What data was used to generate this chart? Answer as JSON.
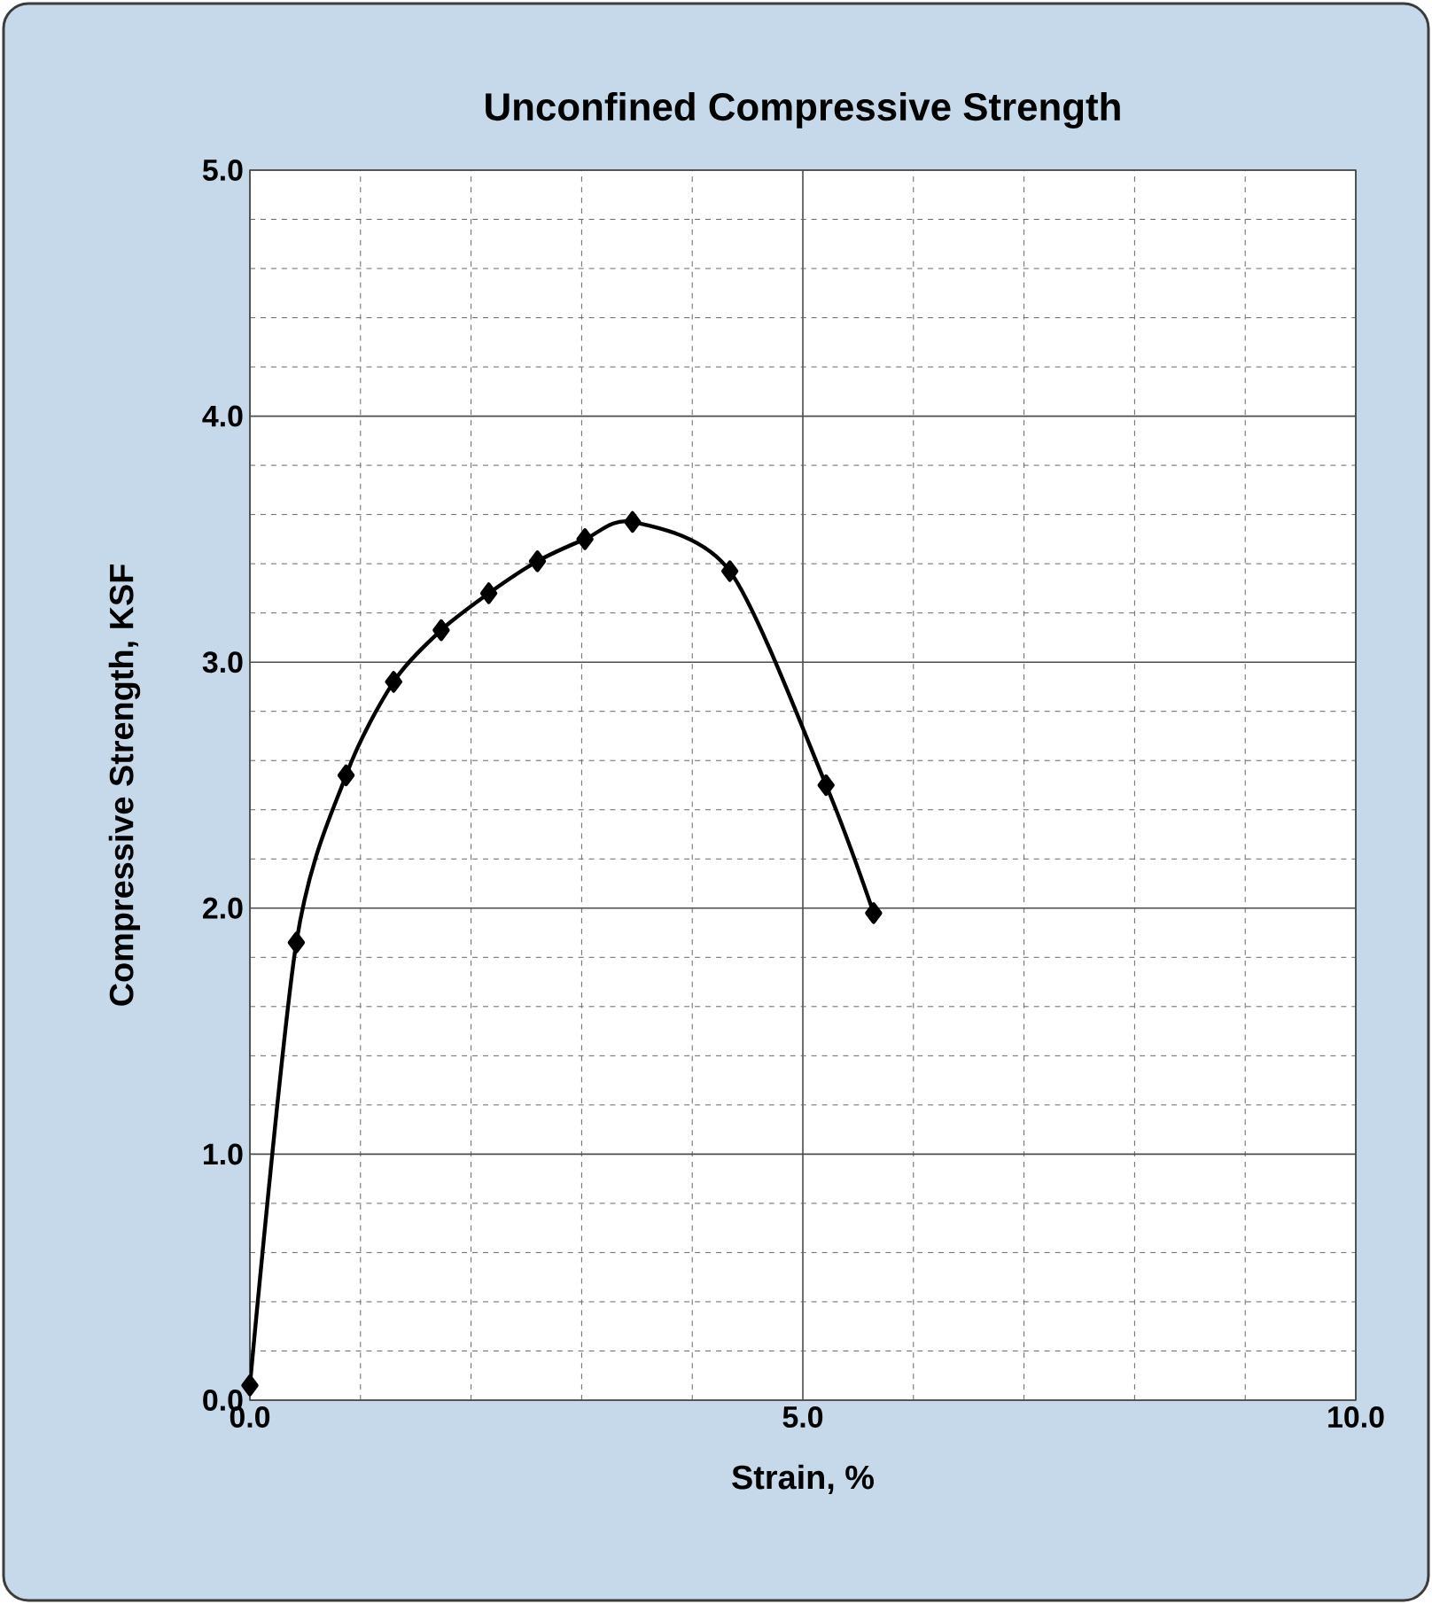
{
  "chart_data": {
    "type": "line",
    "title": "Unconfined Compressive Strength",
    "xlabel": "Strain, %",
    "ylabel": "Compressive Strength, KSF",
    "x": [
      0,
      0.42,
      0.87,
      1.3,
      1.73,
      2.16,
      2.6,
      3.03,
      3.46,
      4.34,
      5.21,
      5.64
    ],
    "series": [
      {
        "color": "#000000",
        "values": [
          0.06,
          1.86,
          2.54,
          2.92,
          3.13,
          3.28,
          3.41,
          3.5,
          3.57,
          3.37,
          2.5,
          1.98
        ]
      }
    ],
    "xlim": [
      0,
      10
    ],
    "ylim": [
      0,
      5
    ],
    "xticks": [
      {
        "value": 0,
        "label": "0.0"
      },
      {
        "value": 5,
        "label": "5.0"
      },
      {
        "value": 10,
        "label": "10.0"
      }
    ],
    "yticks": [
      {
        "value": 0,
        "label": "0.0"
      },
      {
        "value": 1,
        "label": "1.0"
      },
      {
        "value": 2,
        "label": "2.0"
      },
      {
        "value": 3,
        "label": "3.0"
      },
      {
        "value": 4,
        "label": "4.0"
      },
      {
        "value": 5,
        "label": "5.0"
      }
    ],
    "grid": true,
    "marker": "diamond",
    "line_style": "solid"
  }
}
